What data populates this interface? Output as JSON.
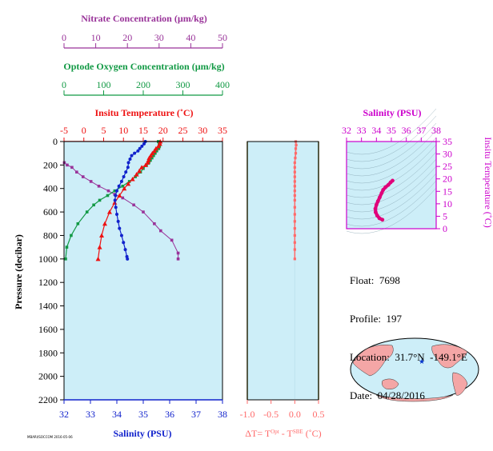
{
  "info": {
    "float_label": "Float:",
    "float_value": "7698",
    "profile_label": "Profile:",
    "profile_value": "197",
    "location_label": "Location:",
    "location_value": "31.7°N  -149.1°E",
    "date_label": "Date:",
    "date_value": "04/28/2016"
  },
  "footer_tag": "MBARI/SOCCOM 2016-05-06",
  "colors": {
    "nitrate": "#993399",
    "oxygen": "#119944",
    "temperature": "#ee1111",
    "salinity": "#1122cc",
    "delta": "#ff6a6a",
    "ts_axis": "#cc00cc",
    "panel_bg": "#cdeef8",
    "land": "#f4a6a6",
    "ocean": "#cdeef8"
  },
  "chart_data": [
    {
      "type": "line",
      "name": "main-profile",
      "ylabel": "Pressure (decibar)",
      "ylim": [
        0,
        2200
      ],
      "yticks": [
        0,
        200,
        400,
        600,
        800,
        1000,
        1200,
        1400,
        1600,
        1800,
        2000,
        2200
      ],
      "axes": {
        "nitrate": {
          "label": "Nitrate Concentration (µm/kg)",
          "lim": [
            0,
            50
          ],
          "ticks": [
            0,
            10,
            20,
            30,
            40,
            50
          ]
        },
        "oxygen": {
          "label": "Optode Oxygen Concentration (µm/kg)",
          "lim": [
            0,
            400
          ],
          "ticks": [
            0,
            100,
            200,
            300,
            400
          ]
        },
        "temperature": {
          "label": "Insitu Temperature (˚C)",
          "lim": [
            -5,
            35
          ],
          "ticks": [
            -5,
            0,
            5,
            10,
            15,
            20,
            25,
            30,
            35
          ]
        },
        "salinity": {
          "label": "Salinity (PSU)",
          "lim": [
            32,
            38
          ],
          "ticks": [
            32,
            33,
            34,
            35,
            36,
            37,
            38
          ]
        }
      },
      "series": [
        {
          "key": "nitrate",
          "axis": "nitrate",
          "marker": "square",
          "pressure": [
            180,
            200,
            220,
            260,
            300,
            340,
            380,
            420,
            450,
            480,
            540,
            600,
            700,
            760,
            840,
            950,
            1000
          ],
          "values": [
            0.1,
            1,
            2.5,
            4,
            6,
            8.5,
            11,
            14,
            16,
            18.5,
            22,
            25,
            28.5,
            30.5,
            34,
            36,
            36
          ]
        },
        {
          "key": "temperature",
          "axis": "temperature",
          "marker": "triangle",
          "pressure": [
            0,
            20,
            40,
            60,
            80,
            100,
            120,
            140,
            160,
            180,
            200,
            220,
            250,
            280,
            320,
            360,
            400,
            460,
            520,
            600,
            700,
            800,
            900,
            1000
          ],
          "values": [
            19.3,
            19.2,
            18.8,
            18.2,
            17.8,
            17.3,
            16.9,
            16.5,
            16.3,
            16.1,
            15.6,
            14.6,
            14.0,
            13.3,
            12.3,
            11.2,
            10.2,
            9.0,
            7.8,
            6.5,
            5.3,
            4.5,
            4.0,
            3.6
          ]
        },
        {
          "key": "salinity",
          "axis": "salinity",
          "marker": "circle",
          "pressure": [
            0,
            20,
            40,
            60,
            80,
            100,
            120,
            150,
            180,
            220,
            260,
            300,
            340,
            380,
            420,
            460,
            500,
            560,
            620,
            680,
            740,
            800,
            860,
            920,
            980,
            1000
          ],
          "values": [
            35.08,
            35.03,
            34.95,
            34.87,
            34.8,
            34.67,
            34.56,
            34.5,
            34.44,
            34.42,
            34.34,
            34.26,
            34.18,
            34.08,
            34.0,
            33.95,
            33.93,
            33.96,
            34.0,
            34.05,
            34.1,
            34.18,
            34.25,
            34.32,
            34.38,
            34.4
          ]
        },
        {
          "key": "oxygen",
          "axis": "oxygen",
          "marker": "square",
          "pressure": [
            0,
            20,
            40,
            60,
            80,
            100,
            120,
            140,
            160,
            180,
            200,
            230,
            260,
            300,
            340,
            380,
            420,
            460,
            500,
            540,
            600,
            700,
            800,
            900,
            1000
          ],
          "values": [
            238,
            240,
            241,
            239,
            234,
            230,
            226,
            222,
            218,
            214,
            208,
            200,
            193,
            180,
            165,
            148,
            128,
            110,
            90,
            75,
            58,
            35,
            18,
            7,
            4
          ]
        }
      ]
    },
    {
      "type": "line",
      "name": "delta-t",
      "xlabel": "ΔT= TOpt - TSBE (˚C)",
      "xlim": [
        -1.0,
        0.5
      ],
      "xticks": [
        -1.0,
        -0.5,
        0.0,
        0.5
      ],
      "ylim": [
        0,
        2200
      ],
      "series": [
        {
          "key": "delta",
          "pressure": [
            0,
            30,
            60,
            100,
            140,
            180,
            220,
            260,
            300,
            340,
            380,
            420,
            460,
            500,
            560,
            620,
            680,
            740,
            800,
            860,
            920,
            1000
          ],
          "values": [
            0.02,
            0.03,
            0.02,
            0.02,
            0.01,
            0.0,
            0.0,
            0.0,
            0.0,
            0.0,
            0.0,
            0.0,
            0.0,
            0.0,
            0.0,
            0.0,
            0.0,
            0.0,
            0.0,
            0.0,
            0.0,
            0.0
          ]
        }
      ]
    },
    {
      "type": "line",
      "name": "ts-diagram",
      "xlabel": "Salinity (PSU)",
      "ylabel": "Insitu Temperature (˚C)",
      "xlim": [
        32,
        38
      ],
      "ylim": [
        0,
        35
      ],
      "xticks": [
        32,
        33,
        34,
        35,
        36,
        37,
        38
      ],
      "yticks": [
        0,
        5,
        10,
        15,
        20,
        25,
        30,
        35
      ],
      "series": [
        {
          "key": "ts",
          "salinity": [
            35.08,
            34.95,
            34.8,
            34.6,
            34.45,
            34.35,
            34.22,
            34.1,
            34.0,
            33.93,
            33.95,
            34.05,
            34.2,
            34.4
          ],
          "temperature": [
            19.3,
            18.6,
            17.6,
            16.6,
            15.6,
            14.3,
            12.6,
            11.0,
            9.6,
            8.0,
            6.6,
            5.3,
            4.2,
            3.6
          ]
        }
      ]
    }
  ]
}
